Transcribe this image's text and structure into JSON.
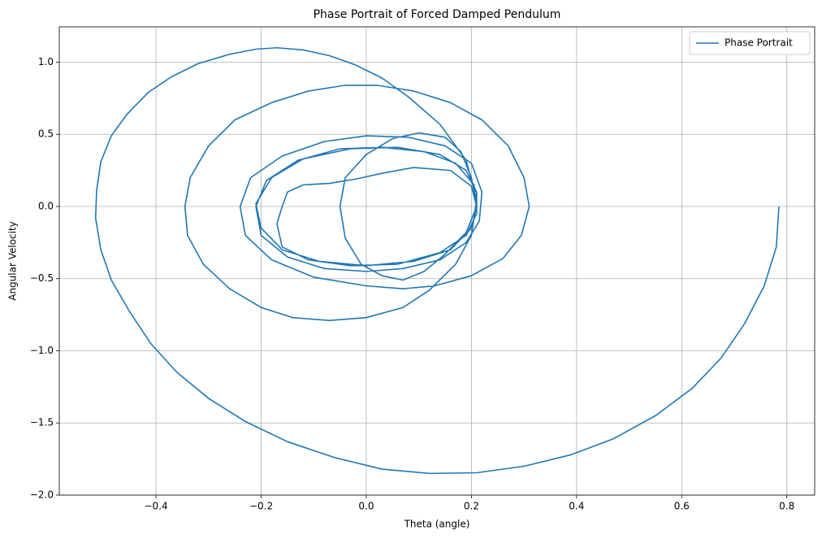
{
  "chart_data": {
    "type": "line",
    "title": "Phase Portrait of Forced Damped Pendulum",
    "x_label": "Theta (angle)",
    "y_label": "Angular Velocity",
    "x": [
      0.785,
      0.78,
      0.757,
      0.72,
      0.675,
      0.62,
      0.55,
      0.47,
      0.39,
      0.3,
      0.21,
      0.12,
      0.03,
      -0.06,
      -0.15,
      -0.23,
      -0.3,
      -0.36,
      -0.41,
      -0.45,
      -0.485,
      -0.505,
      -0.515,
      -0.513,
      -0.505,
      -0.485,
      -0.455,
      -0.415,
      -0.37,
      -0.32,
      -0.26,
      -0.21,
      -0.17,
      -0.12,
      -0.07,
      -0.02,
      0.03,
      0.08,
      0.14,
      0.19,
      0.21,
      0.2,
      0.17,
      0.12,
      0.07,
      0.0,
      -0.07,
      -0.14,
      -0.2,
      -0.26,
      -0.31,
      -0.34,
      -0.345,
      -0.335,
      -0.3,
      -0.25,
      -0.18,
      -0.11,
      -0.04,
      0.02,
      0.09,
      0.16,
      0.22,
      0.27,
      0.3,
      0.31,
      0.295,
      0.26,
      0.2,
      0.13,
      0.07,
      0.0,
      -0.1,
      -0.18,
      -0.23,
      -0.24,
      -0.22,
      -0.16,
      -0.08,
      0.0,
      0.08,
      0.15,
      0.2,
      0.22,
      0.215,
      0.19,
      0.14,
      0.07,
      0.0,
      -0.08,
      -0.15,
      -0.2,
      -0.21,
      -0.19,
      -0.13,
      -0.05,
      0.03,
      0.11,
      0.17,
      0.205,
      0.21,
      0.2,
      0.16,
      0.09,
      0.0,
      -0.09,
      -0.16,
      -0.2,
      -0.21,
      -0.18,
      -0.12,
      -0.03,
      0.06,
      0.14,
      0.19,
      0.21,
      0.21,
      0.19,
      0.14,
      0.06,
      -0.03,
      -0.11,
      -0.16,
      -0.17,
      -0.16,
      -0.15,
      -0.12,
      -0.07,
      -0.02,
      0.03,
      0.09,
      0.16,
      0.2,
      0.21,
      0.19,
      0.15,
      0.11,
      0.07,
      0.03,
      -0.01,
      -0.04,
      -0.05,
      -0.04,
      0.0,
      0.05,
      0.1,
      0.15,
      0.18,
      0.2,
      0.21
    ],
    "series": [
      {
        "name": "Phase Portrait",
        "color": "#1f77b4",
        "values": [
          0,
          -0.28,
          -0.55,
          -0.81,
          -1.05,
          -1.26,
          -1.45,
          -1.61,
          -1.72,
          -1.8,
          -1.845,
          -1.85,
          -1.82,
          -1.74,
          -1.63,
          -1.49,
          -1.33,
          -1.15,
          -0.95,
          -0.73,
          -0.51,
          -0.3,
          -0.08,
          0.11,
          0.31,
          0.49,
          0.64,
          0.79,
          0.9,
          0.99,
          1.055,
          1.09,
          1.1,
          1.085,
          1.045,
          0.98,
          0.89,
          0.76,
          0.57,
          0.32,
          0.05,
          -0.2,
          -0.4,
          -0.58,
          -0.7,
          -0.77,
          -0.79,
          -0.77,
          -0.7,
          -0.57,
          -0.4,
          -0.2,
          0,
          0.2,
          0.42,
          0.6,
          0.72,
          0.8,
          0.84,
          0.84,
          0.8,
          0.72,
          0.6,
          0.42,
          0.2,
          0,
          -0.2,
          -0.36,
          -0.48,
          -0.55,
          -0.57,
          -0.55,
          -0.49,
          -0.37,
          -0.2,
          0,
          0.2,
          0.35,
          0.45,
          0.49,
          0.48,
          0.42,
          0.3,
          0.1,
          -0.1,
          -0.25,
          -0.37,
          -0.43,
          -0.45,
          -0.43,
          -0.35,
          -0.2,
          0,
          0.18,
          0.32,
          0.4,
          0.41,
          0.38,
          0.3,
          0.15,
          0,
          -0.15,
          -0.3,
          -0.38,
          -0.41,
          -0.38,
          -0.3,
          -0.15,
          0.02,
          0.2,
          0.33,
          0.4,
          0.41,
          0.36,
          0.25,
          0.1,
          -0.05,
          -0.2,
          -0.32,
          -0.4,
          -0.41,
          -0.37,
          -0.28,
          -0.12,
          0,
          0.1,
          0.15,
          0.16,
          0.19,
          0.23,
          0.27,
          0.25,
          0.14,
          0,
          -0.18,
          -0.33,
          -0.45,
          -0.51,
          -0.48,
          -0.4,
          -0.22,
          0,
          0.2,
          0.36,
          0.47,
          0.51,
          0.48,
          0.38,
          0.2,
          0
        ]
      }
    ],
    "xlim": [
      -0.584,
      0.853
    ],
    "ylim": [
      -2.0,
      1.245
    ],
    "xticks": [
      {
        "value": -0.4,
        "label": "−0.4"
      },
      {
        "value": -0.2,
        "label": "−0.2"
      },
      {
        "value": 0.0,
        "label": "0.0"
      },
      0.2,
      0.4,
      0.6,
      0.8
    ],
    "yticks": [
      {
        "value": -2.0,
        "label": "−2.0"
      },
      {
        "value": -1.5,
        "label": "−1.5"
      },
      {
        "value": -1.0,
        "label": "−1.0"
      },
      {
        "value": -0.5,
        "label": "−0.5"
      },
      {
        "value": 0.0,
        "label": "0.0"
      },
      0.5,
      {
        "value": 1.0,
        "label": "1.0"
      }
    ],
    "grid": true,
    "legend": "upper right"
  }
}
